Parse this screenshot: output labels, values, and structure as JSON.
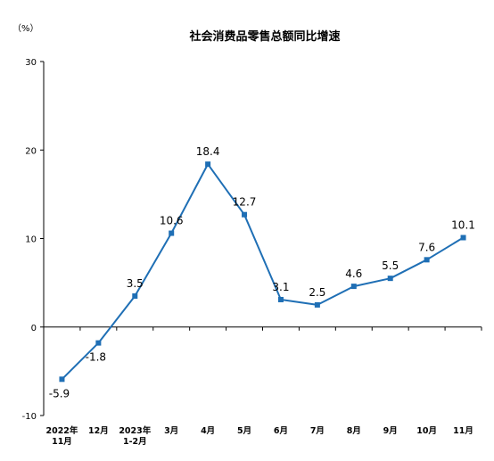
{
  "chart_data": {
    "type": "line",
    "title": "社会消费品零售总额同比增速",
    "unit": "（%）",
    "categories": [
      [
        "2022年",
        "11月"
      ],
      [
        "12月"
      ],
      [
        "2023年",
        "1-2月"
      ],
      [
        "3月"
      ],
      [
        "4月"
      ],
      [
        "5月"
      ],
      [
        "6月"
      ],
      [
        "7月"
      ],
      [
        "8月"
      ],
      [
        "9月"
      ],
      [
        "10月"
      ],
      [
        "11月"
      ]
    ],
    "values": [
      -5.9,
      -1.8,
      3.5,
      10.6,
      18.4,
      12.7,
      3.1,
      2.5,
      4.6,
      5.5,
      7.6,
      10.1
    ],
    "labels": [
      "-5.9",
      "-1.8",
      "3.5",
      "10.6",
      "18.4",
      "12.7",
      "3.1",
      "2.5",
      "4.6",
      "5.5",
      "7.6",
      "10.1"
    ],
    "yticks": [
      "30",
      "20",
      "10",
      "0",
      "-10"
    ],
    "ylim": [
      -10,
      30
    ],
    "grid": false,
    "line_color": "#1f6fb5",
    "marker_color": "#1f6fb5"
  }
}
